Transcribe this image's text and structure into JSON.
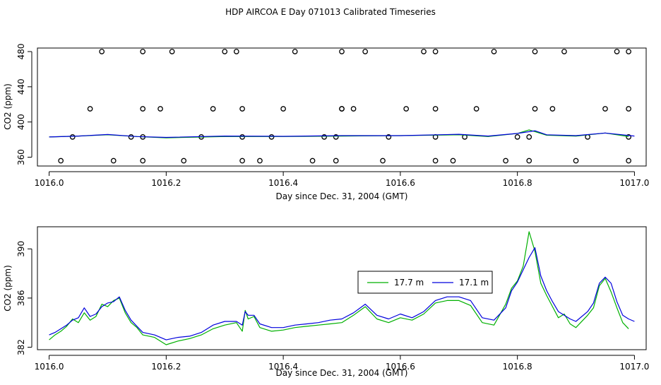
{
  "title": "HDP AIRCOA E  Day 071013  Calibrated Timeseries",
  "chart_data": [
    {
      "type": "scatter",
      "xlabel": "Day since Dec. 31, 2004 (GMT)",
      "ylabel": "CO2 (ppm)",
      "xlim": [
        1015.98,
        1017.02
      ],
      "ylim": [
        350,
        484
      ],
      "xticks": [
        "1016.0",
        "1016.2",
        "1016.4",
        "1016.6",
        "1016.8",
        "1017.0"
      ],
      "yticks": [
        "360",
        "400",
        "440",
        "480"
      ],
      "points_480": [
        1016.09,
        1016.16,
        1016.21,
        1016.3,
        1016.32,
        1016.42,
        1016.5,
        1016.54,
        1016.64,
        1016.66,
        1016.76,
        1016.83,
        1016.88,
        1016.97,
        1016.99
      ],
      "points_415": [
        1016.07,
        1016.16,
        1016.19,
        1016.28,
        1016.33,
        1016.4,
        1016.5,
        1016.5,
        1016.52,
        1016.61,
        1016.66,
        1016.73,
        1016.83,
        1016.86,
        1016.95,
        1016.99
      ],
      "points_383": [
        1016.04,
        1016.14,
        1016.16,
        1016.26,
        1016.33,
        1016.38,
        1016.47,
        1016.49,
        1016.58,
        1016.66,
        1016.71,
        1016.8,
        1016.82,
        1016.92,
        1016.99
      ],
      "points_356": [
        1016.02,
        1016.11,
        1016.16,
        1016.23,
        1016.33,
        1016.36,
        1016.45,
        1016.49,
        1016.57,
        1016.66,
        1016.69,
        1016.78,
        1016.82,
        1016.9,
        1016.99
      ],
      "series": [
        {
          "color": "#00b000",
          "x": [
            1016.0,
            1016.05,
            1016.1,
            1016.15,
            1016.2,
            1016.3,
            1016.4,
            1016.5,
            1016.6,
            1016.7,
            1016.75,
            1016.8,
            1016.82,
            1016.85,
            1016.9,
            1016.95,
            1016.99
          ],
          "y": [
            383,
            384,
            385.5,
            383.5,
            382,
            383.5,
            383.5,
            384,
            384.5,
            385.5,
            383.5,
            387,
            391,
            385,
            384,
            387.5,
            383.5
          ]
        },
        {
          "color": "#0000dd",
          "x": [
            1016.0,
            1016.05,
            1016.1,
            1016.15,
            1016.2,
            1016.3,
            1016.4,
            1016.5,
            1016.6,
            1016.7,
            1016.75,
            1016.8,
            1016.83,
            1016.85,
            1016.9,
            1016.95,
            1017.0
          ],
          "y": [
            383,
            384,
            385.8,
            383.5,
            382.5,
            384,
            383.7,
            384.5,
            384.5,
            386,
            384,
            387,
            390,
            385.5,
            384.5,
            387.5,
            384
          ]
        }
      ]
    },
    {
      "type": "line",
      "xlabel": "Day since Dec. 31, 2004 (GMT)",
      "ylabel": "CO2 (ppm)",
      "xlim": [
        1015.98,
        1017.02
      ],
      "ylim": [
        381.8,
        391.8
      ],
      "xticks": [
        "1016.0",
        "1016.2",
        "1016.4",
        "1016.6",
        "1016.8",
        "1017.0"
      ],
      "yticks": [
        "382",
        "386",
        "390"
      ],
      "legend": {
        "position": "center-right"
      },
      "series": [
        {
          "name": "17.7 m",
          "color": "#00b000",
          "x": [
            1016.0,
            1016.01,
            1016.02,
            1016.03,
            1016.04,
            1016.05,
            1016.06,
            1016.07,
            1016.08,
            1016.09,
            1016.1,
            1016.11,
            1016.12,
            1016.13,
            1016.14,
            1016.15,
            1016.16,
            1016.18,
            1016.2,
            1016.22,
            1016.24,
            1016.26,
            1016.28,
            1016.3,
            1016.32,
            1016.33,
            1016.335,
            1016.34,
            1016.35,
            1016.36,
            1016.38,
            1016.4,
            1016.42,
            1016.44,
            1016.46,
            1016.48,
            1016.5,
            1016.52,
            1016.54,
            1016.56,
            1016.58,
            1016.6,
            1016.62,
            1016.64,
            1016.66,
            1016.68,
            1016.7,
            1016.72,
            1016.74,
            1016.76,
            1016.78,
            1016.79,
            1016.8,
            1016.81,
            1016.82,
            1016.83,
            1016.84,
            1016.85,
            1016.86,
            1016.87,
            1016.88,
            1016.89,
            1016.9,
            1016.92,
            1016.93,
            1016.94,
            1016.95,
            1016.96,
            1016.97,
            1016.98,
            1016.99
          ],
          "y": [
            382.6,
            383,
            383.3,
            383.7,
            384.3,
            384,
            384.8,
            384.2,
            384.5,
            385.5,
            385.3,
            385.8,
            386,
            384.8,
            384,
            383.6,
            383,
            382.8,
            382.2,
            382.5,
            382.7,
            383,
            383.5,
            383.8,
            384,
            383.3,
            385,
            384.3,
            384.5,
            383.6,
            383.3,
            383.4,
            383.6,
            383.7,
            383.8,
            383.9,
            384,
            384.6,
            385.3,
            384.3,
            384,
            384.4,
            384.2,
            384.7,
            385.6,
            385.8,
            385.8,
            385.4,
            384,
            383.8,
            385.5,
            386.8,
            387.4,
            388.6,
            391.4,
            389.8,
            387.2,
            386.2,
            385.3,
            384.4,
            384.7,
            383.9,
            383.6,
            384.6,
            385.2,
            387,
            387.6,
            386.5,
            385.2,
            384,
            383.5
          ]
        },
        {
          "name": "17.1 m",
          "color": "#0000dd",
          "x": [
            1016.0,
            1016.01,
            1016.02,
            1016.03,
            1016.04,
            1016.05,
            1016.06,
            1016.07,
            1016.08,
            1016.09,
            1016.1,
            1016.11,
            1016.12,
            1016.13,
            1016.14,
            1016.15,
            1016.16,
            1016.18,
            1016.2,
            1016.22,
            1016.24,
            1016.26,
            1016.28,
            1016.3,
            1016.32,
            1016.33,
            1016.335,
            1016.34,
            1016.35,
            1016.36,
            1016.38,
            1016.4,
            1016.42,
            1016.44,
            1016.46,
            1016.48,
            1016.5,
            1016.52,
            1016.54,
            1016.56,
            1016.58,
            1016.6,
            1016.62,
            1016.64,
            1016.66,
            1016.68,
            1016.7,
            1016.72,
            1016.74,
            1016.76,
            1016.78,
            1016.79,
            1016.8,
            1016.81,
            1016.82,
            1016.83,
            1016.84,
            1016.85,
            1016.86,
            1016.87,
            1016.88,
            1016.89,
            1016.9,
            1016.92,
            1016.93,
            1016.94,
            1016.95,
            1016.96,
            1016.97,
            1016.98,
            1016.99,
            1017.0
          ],
          "y": [
            383,
            383.2,
            383.5,
            383.8,
            384.2,
            384.4,
            385.2,
            384.5,
            384.7,
            385.3,
            385.6,
            385.7,
            386.1,
            385,
            384.2,
            383.7,
            383.2,
            383,
            382.6,
            382.8,
            382.9,
            383.2,
            383.8,
            384.1,
            384.1,
            383.8,
            384.9,
            384.6,
            384.6,
            383.9,
            383.6,
            383.6,
            383.8,
            383.9,
            384,
            384.2,
            384.3,
            384.8,
            385.5,
            384.6,
            384.3,
            384.7,
            384.4,
            384.9,
            385.8,
            386.1,
            386.1,
            385.8,
            384.4,
            384.2,
            385.2,
            386.6,
            387.3,
            388.3,
            389.3,
            390.1,
            387.8,
            386.6,
            385.7,
            384.9,
            384.6,
            384.3,
            384.1,
            384.9,
            385.6,
            387.2,
            387.7,
            387.2,
            385.7,
            384.6,
            384.3,
            384.1
          ]
        }
      ]
    }
  ]
}
